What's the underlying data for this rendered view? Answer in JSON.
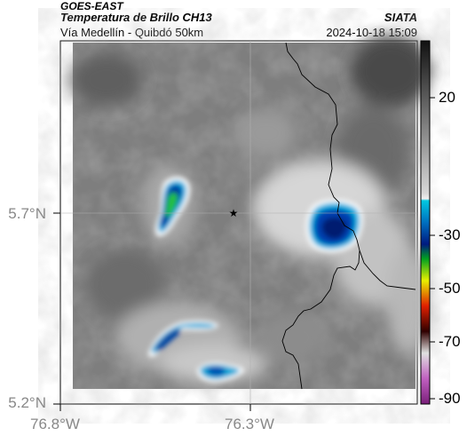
{
  "header": {
    "source": "GOES-EAST",
    "product": "Temperatura de Brillo CH13",
    "region": "Vía Medellín - Quibdó 50km",
    "org": "SIATA",
    "timestamp": "2024-10-18 15:09"
  },
  "axes": {
    "lat_ticks": [
      "5.7°N",
      "5.2°N"
    ],
    "lon_ticks": [
      "76.8°W",
      "76.3°W"
    ]
  },
  "colorbar": {
    "tick_labels": [
      "20",
      "-30",
      "-50",
      "-70",
      "-90"
    ]
  },
  "map": {
    "marker_icon": "star-icon"
  }
}
